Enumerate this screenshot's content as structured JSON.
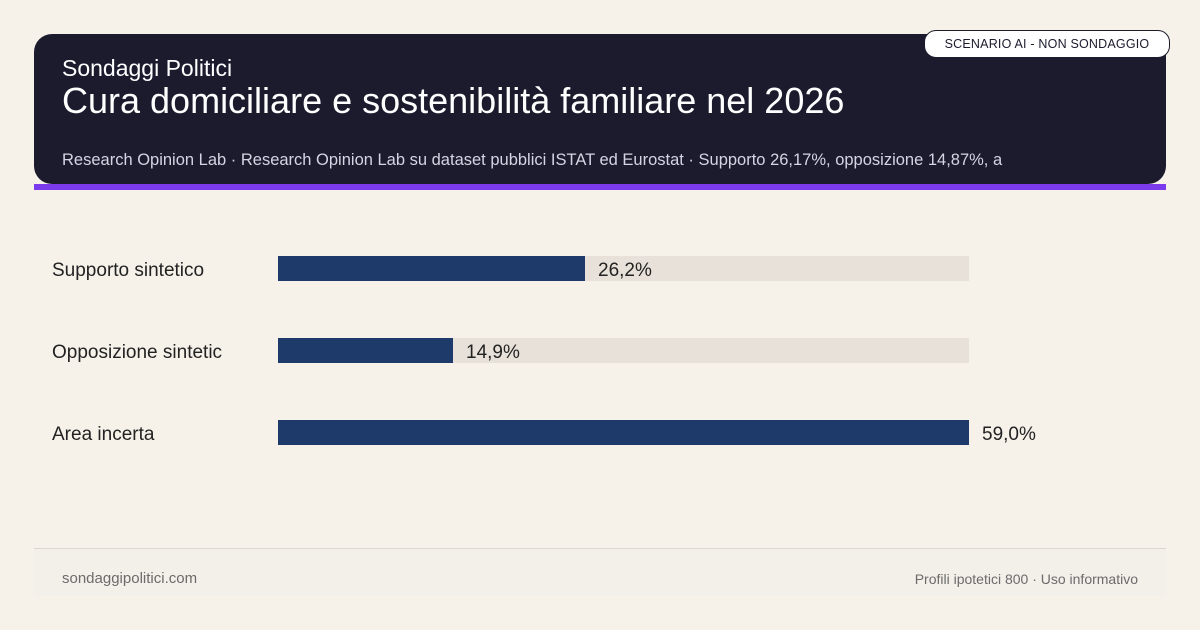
{
  "header": {
    "brand": "Sondaggi Politici",
    "title": "Cura domiciliare e sostenibilità familiare nel 2026",
    "subtitle": "Research Opinion Lab · Research Opinion Lab su dataset pubblici ISTAT ed Eurostat · Supporto 26,17%, opposizione 14,87%, a"
  },
  "badge": "SCENARIO AI - NON SONDAGGIO",
  "chart_data": {
    "type": "bar",
    "orientation": "horizontal",
    "categories": [
      "Supporto sintetico",
      "Opposizione sintetic",
      "Area incerta"
    ],
    "values": [
      26.2,
      14.9,
      59.0
    ],
    "value_labels": [
      "26,2%",
      "14,9%",
      "59,0%"
    ],
    "xlim": [
      0,
      59.0
    ],
    "grid": false,
    "colors": {
      "bar": "#1e3a6b",
      "track": "#e8e1d9"
    }
  },
  "footer": {
    "site": "sondaggipolitici.com",
    "note": "Profili ipotetici 800 · Uso informativo"
  },
  "colors": {
    "header_bg": "#1c1b2e",
    "accent": "#7c3aed",
    "page_bg": "#f6f2ea"
  }
}
